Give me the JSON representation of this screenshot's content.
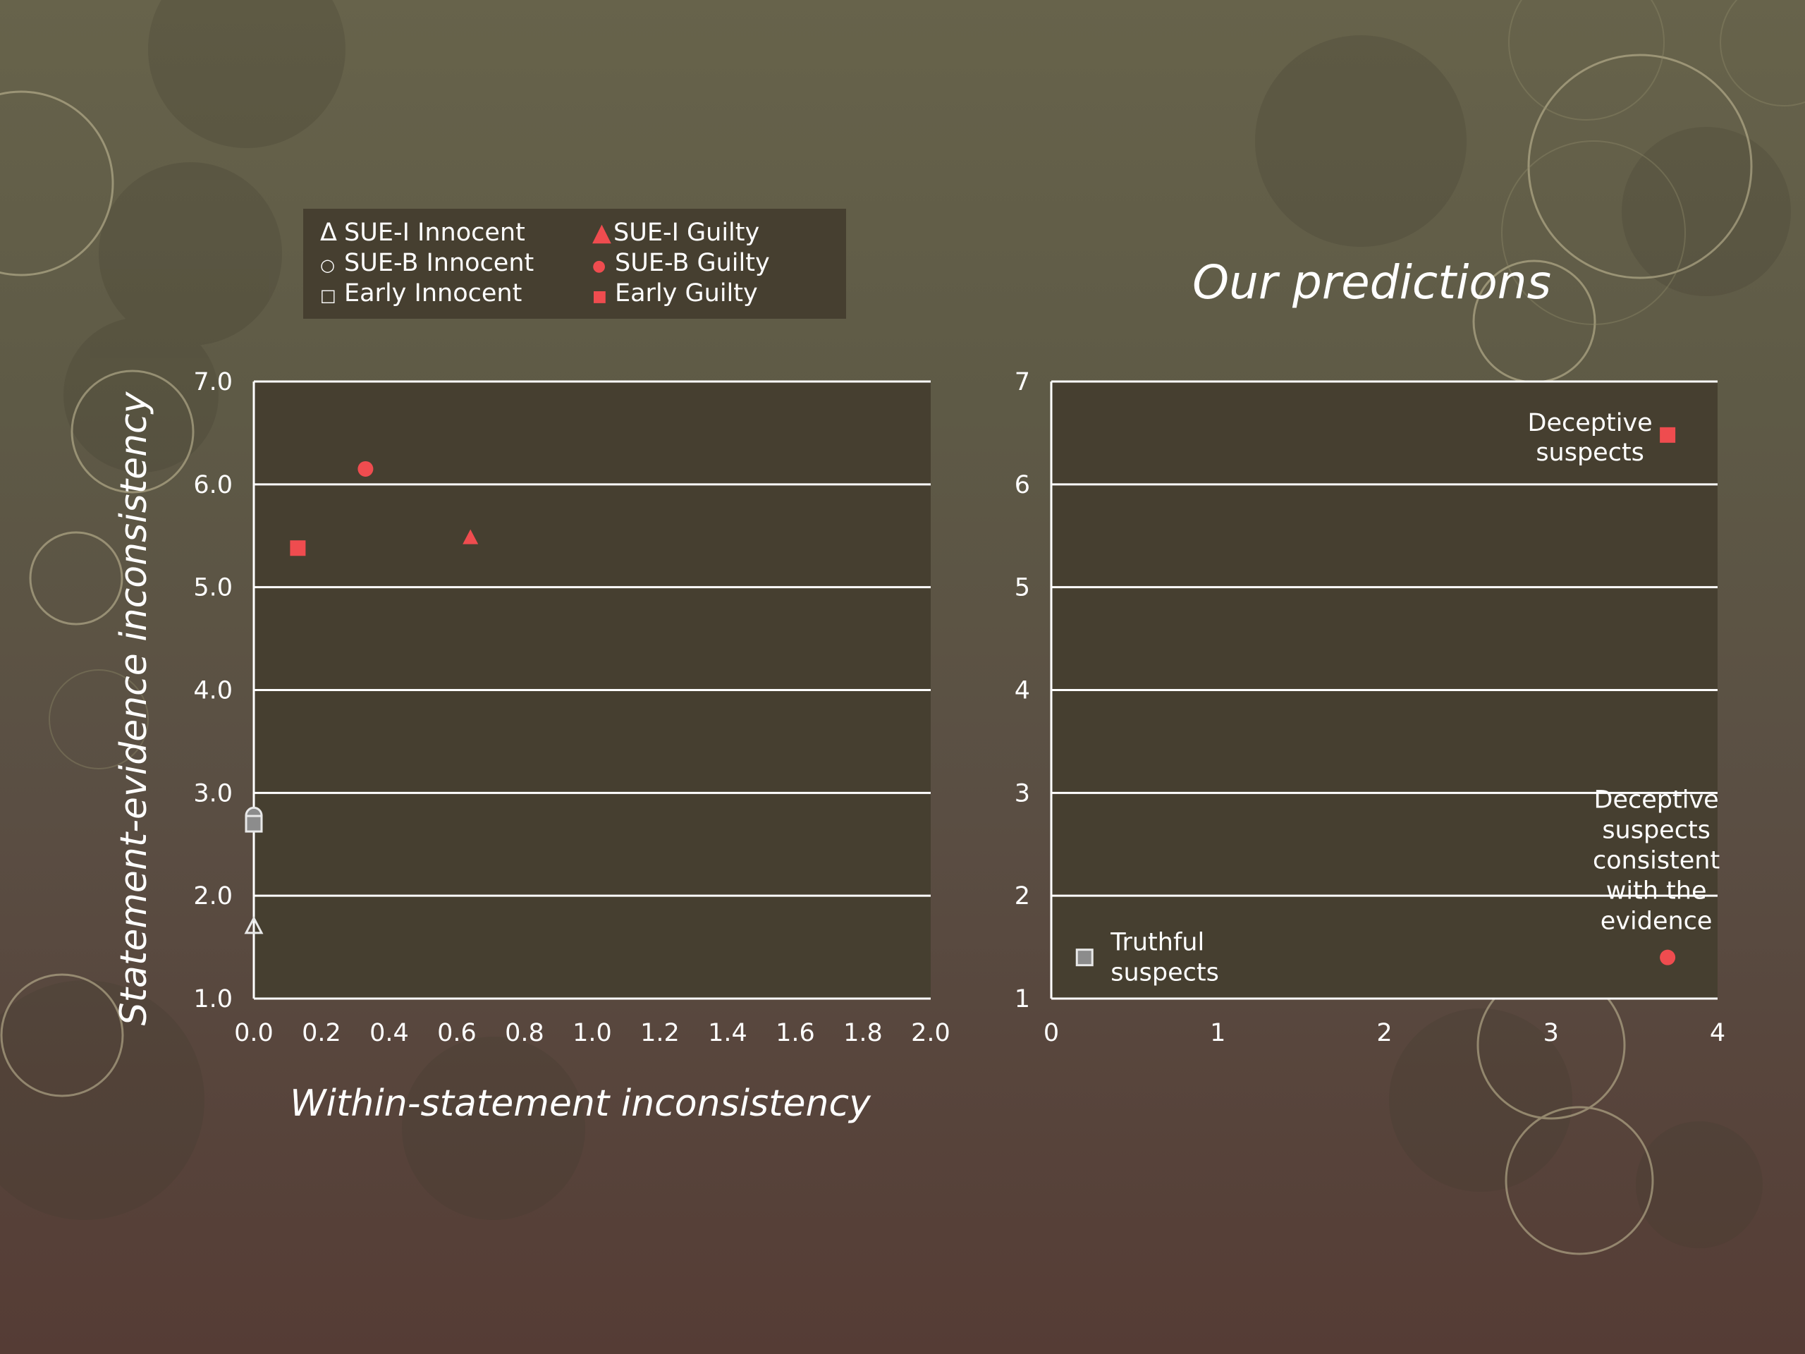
{
  "legend": {
    "entries": [
      {
        "symbol": "Δ",
        "label": "SUE-I Innocent"
      },
      {
        "symbol": "○",
        "label": "SUE-B Innocent"
      },
      {
        "symbol": "□",
        "label": "Early Innocent"
      },
      {
        "symbol": "▲",
        "label": "SUE-I Guilty"
      },
      {
        "symbol": "●",
        "label": "SUE-B Guilty"
      },
      {
        "symbol": "■",
        "label": "Early Guilty"
      }
    ]
  },
  "predictions_title": "Our predictions",
  "colors": {
    "plot_bg": "#463f30",
    "grid": "#ffffff",
    "guilty": "#ef4c4f",
    "innocent_stroke": "#e8e8e8",
    "innocent_fill": "#8c8c8c"
  },
  "chart_data": [
    {
      "type": "scatter",
      "title": "",
      "xlabel": "Within-statement inconsistency",
      "ylabel": "Statement-evidence inconsistency",
      "xlim": [
        0.0,
        2.0
      ],
      "ylim": [
        1.0,
        7.0
      ],
      "x_ticks": [
        "0.0",
        "0.2",
        "0.4",
        "0.6",
        "0.8",
        "1.0",
        "1.2",
        "1.4",
        "1.6",
        "1.8",
        "2.0"
      ],
      "y_ticks": [
        "1.0",
        "2.0",
        "3.0",
        "4.0",
        "5.0",
        "6.0",
        "7.0"
      ],
      "grid": true,
      "legend_position": "top-left",
      "series": [
        {
          "name": "SUE-I Innocent",
          "marker": "triangle-open",
          "points": [
            [
              0.0,
              1.7
            ]
          ]
        },
        {
          "name": "SUE-B Innocent",
          "marker": "circle-open",
          "points": [
            [
              0.0,
              2.78
            ]
          ]
        },
        {
          "name": "Early Innocent",
          "marker": "square-open",
          "points": [
            [
              0.0,
              2.7
            ]
          ]
        },
        {
          "name": "SUE-I Guilty",
          "marker": "triangle",
          "points": [
            [
              0.64,
              5.48
            ]
          ]
        },
        {
          "name": "SUE-B Guilty",
          "marker": "circle",
          "points": [
            [
              0.33,
              6.15
            ]
          ]
        },
        {
          "name": "Early Guilty",
          "marker": "square",
          "points": [
            [
              0.13,
              5.38
            ]
          ]
        }
      ]
    },
    {
      "type": "scatter",
      "title": "Our predictions",
      "xlim": [
        0,
        4
      ],
      "ylim": [
        1,
        7
      ],
      "x_ticks": [
        "0",
        "1",
        "2",
        "3",
        "4"
      ],
      "y_ticks": [
        "1",
        "2",
        "3",
        "4",
        "5",
        "6",
        "7"
      ],
      "grid": true,
      "points": [
        {
          "x": 3.7,
          "y": 6.48,
          "marker": "square",
          "label_lines": [
            "Deceptive",
            "suspects"
          ]
        },
        {
          "x": 3.7,
          "y": 1.4,
          "marker": "circle",
          "label_lines": [
            "Deceptive",
            "suspects",
            "consistent",
            "with the",
            "evidence"
          ]
        },
        {
          "x": 0.2,
          "y": 1.4,
          "marker": "square-open",
          "label_lines": [
            "Truthful",
            "suspects"
          ]
        }
      ]
    }
  ]
}
